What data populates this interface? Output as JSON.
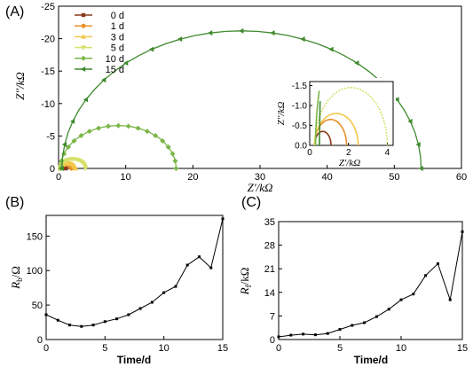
{
  "panels": {
    "a": {
      "label": "(A)"
    },
    "b": {
      "label": "(B)"
    },
    "c": {
      "label": "(C)"
    }
  },
  "colors": {
    "0 d": "#8b3a1a",
    "1 d": "#e8902a",
    "3 d": "#f3c74a",
    "5 d": "#d6e06a",
    "10 d": "#7ab648",
    "15 d": "#3f8a2e",
    "line": "#000000"
  },
  "chart_data": [
    {
      "id": "A",
      "type": "scatter",
      "title": "",
      "xlabel": "Z'/kΩ",
      "ylabel": "Z''/kΩ",
      "xlim": [
        0,
        60
      ],
      "ylim": [
        0,
        -25
      ],
      "x_ticks": [
        "0",
        "10",
        "20",
        "30",
        "40",
        "50",
        "60"
      ],
      "y_ticks": [
        "0",
        "-5",
        "-10",
        "-15",
        "-20",
        "-25"
      ],
      "legend_position": "top-left",
      "series": [
        {
          "name": "0 d",
          "arc": {
            "x0": 0.25,
            "x1": 1.1,
            "peak": -0.35
          }
        },
        {
          "name": "1 d",
          "arc": {
            "x0": 0.25,
            "x1": 1.9,
            "peak": -0.65
          }
        },
        {
          "name": "3 d",
          "arc": {
            "x0": 0.25,
            "x1": 2.5,
            "peak": -0.8
          }
        },
        {
          "name": "5 d",
          "arc": {
            "x0": 0.25,
            "x1": 4.0,
            "peak": -1.45
          }
        },
        {
          "name": "10 d",
          "arc": {
            "x0": 0.3,
            "x1": 17.5,
            "peak": -6.6
          }
        },
        {
          "name": "15 d",
          "arc": {
            "x0": 0.5,
            "x1": 54.0,
            "peak": -21.2
          }
        }
      ],
      "inset": {
        "xlabel": "Z'/kΩ",
        "ylabel": "Z''/kΩ",
        "xlim": [
          0,
          4.3
        ],
        "ylim": [
          0,
          -1.6
        ],
        "x_ticks": [
          "0",
          "2",
          "4"
        ],
        "y_ticks": [
          "0.0",
          "-0.5",
          "-1.0",
          "-1.5"
        ]
      }
    },
    {
      "id": "B",
      "type": "line",
      "xlabel": "Time/d",
      "ylabel": "Rb/Ω",
      "ylabel_main": "R",
      "ylabel_sub": "b",
      "ylabel_unit": "/Ω",
      "xlim": [
        0,
        15
      ],
      "ylim": [
        0,
        180
      ],
      "x_ticks": [
        "0",
        "5",
        "10",
        "15"
      ],
      "y_ticks": [
        "0",
        "50",
        "100",
        "150"
      ],
      "x": [
        0,
        1,
        2,
        3,
        4,
        5,
        6,
        7,
        8,
        9,
        10,
        11,
        12,
        13,
        14,
        15
      ],
      "y": [
        36,
        28,
        21,
        19,
        21,
        26,
        30,
        36,
        45,
        54,
        68,
        77,
        108,
        120,
        104,
        175
      ]
    },
    {
      "id": "C",
      "type": "line",
      "xlabel": "Time/d",
      "ylabel": "Rf/kΩ",
      "ylabel_main": "R",
      "ylabel_sub": "f",
      "ylabel_unit": "/kΩ",
      "xlim": [
        0,
        15
      ],
      "ylim": [
        0,
        35
      ],
      "x_ticks": [
        "0",
        "5",
        "10",
        "15"
      ],
      "y_ticks": [
        "0",
        "7",
        "14",
        "21",
        "28",
        "35"
      ],
      "x": [
        0,
        1,
        2,
        3,
        4,
        5,
        6,
        7,
        8,
        9,
        10,
        11,
        12,
        13,
        14,
        15
      ],
      "y": [
        0.8,
        1.3,
        1.6,
        1.4,
        1.8,
        3.0,
        4.2,
        5.0,
        6.8,
        9.0,
        11.8,
        13.5,
        19.0,
        22.5,
        11.8,
        32.0
      ]
    }
  ]
}
